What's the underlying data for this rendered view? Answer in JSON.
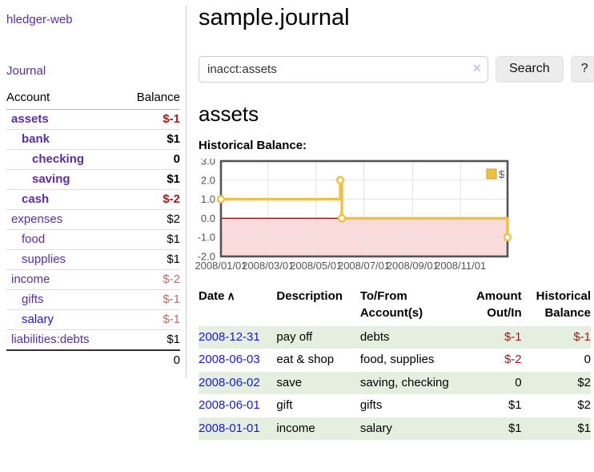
{
  "colors": {
    "link_purple": "#5d2ca8",
    "link_blue": "#1a16e0",
    "negative_strong": "#a11b1b",
    "negative_muted": "#c06c6c",
    "row_green": "#e4efdf",
    "chart_line": "#edc240",
    "chart_negative_region": "#f9dbdb",
    "chart_zero_line": "#8b0000",
    "chart_border": "#545454",
    "chart_grid": "#e3e3e3",
    "chart_text": "#545454"
  },
  "sidebar": {
    "app_title": "hledger-web",
    "journal_link": "Journal",
    "accounts": {
      "header_account": "Account",
      "header_balance": "Balance",
      "rows": [
        {
          "name": "assets",
          "balance": "$-1",
          "level": 1,
          "bold": true,
          "neg": "strong",
          "link_color": "purple"
        },
        {
          "name": "bank",
          "balance": "$1",
          "level": 2,
          "bold": true,
          "neg": "none",
          "link_color": "purple"
        },
        {
          "name": "checking",
          "balance": "0",
          "level": 3,
          "bold": true,
          "neg": "none",
          "link_color": "purple"
        },
        {
          "name": "saving",
          "balance": "$1",
          "level": 3,
          "bold": true,
          "neg": "none",
          "link_color": "purple"
        },
        {
          "name": "cash",
          "balance": "$-2",
          "level": 2,
          "bold": true,
          "neg": "strong",
          "link_color": "purple"
        },
        {
          "name": "expenses",
          "balance": "$2",
          "level": 1,
          "bold": false,
          "neg": "none",
          "link_color": "purple"
        },
        {
          "name": "food",
          "balance": "$1",
          "level": 2,
          "bold": false,
          "neg": "none",
          "link_color": "purple"
        },
        {
          "name": "supplies",
          "balance": "$1",
          "level": 2,
          "bold": false,
          "neg": "none",
          "link_color": "purple"
        },
        {
          "name": "income",
          "balance": "$-2",
          "level": 1,
          "bold": false,
          "neg": "muted",
          "link_color": "purple"
        },
        {
          "name": "gifts",
          "balance": "$-1",
          "level": 2,
          "bold": false,
          "neg": "muted",
          "link_color": "purple"
        },
        {
          "name": "salary",
          "balance": "$-1",
          "level": 2,
          "bold": false,
          "neg": "muted",
          "link_color": "blue"
        },
        {
          "name": "liabilities:debts",
          "balance": "$1",
          "level": 1,
          "bold": false,
          "neg": "none",
          "link_color": "purple"
        }
      ],
      "total": "0"
    }
  },
  "main": {
    "title": "sample.journal",
    "search": {
      "value": "inacct:assets",
      "clear_icon": "×",
      "button_label": "Search",
      "help_label": "?"
    },
    "account_heading": "assets",
    "chart_title": "Historical Balance:"
  },
  "register": {
    "headers": {
      "date": "Date",
      "description": "Description",
      "account": "To/From\nAccount(s)",
      "amount": "Amount\nOut/In",
      "balance": "Historical\nBalance"
    },
    "sort_asc_icon": "∧",
    "rows": [
      {
        "date": "2008-12-31",
        "description": "pay off",
        "account": "debts",
        "amount": "$-1",
        "amount_neg": true,
        "balance": "$-1",
        "balance_neg": true
      },
      {
        "date": "2008-06-03",
        "description": "eat & shop",
        "account": "food, supplies",
        "amount": "$-2",
        "amount_neg": true,
        "balance": "0",
        "balance_neg": false
      },
      {
        "date": "2008-06-02",
        "description": "save",
        "account": "saving, checking",
        "amount": "0",
        "amount_neg": false,
        "balance": "$2",
        "balance_neg": false
      },
      {
        "date": "2008-06-01",
        "description": "gift",
        "account": "gifts",
        "amount": "$1",
        "amount_neg": false,
        "balance": "$2",
        "balance_neg": false
      },
      {
        "date": "2008-01-01",
        "description": "income",
        "account": "salary",
        "amount": "$1",
        "amount_neg": false,
        "balance": "$1",
        "balance_neg": false
      }
    ]
  },
  "chart_data": {
    "type": "line",
    "step": true,
    "title": "Historical Balance",
    "legend": {
      "label": "$",
      "position": "top-right"
    },
    "xlim": [
      0,
      365
    ],
    "ylim": [
      -2,
      3
    ],
    "y_ticks": [
      3.0,
      2.0,
      1.0,
      0.0,
      -1.0,
      -2.0
    ],
    "x_ticks": [
      {
        "label": "2008/01/01",
        "day": 0
      },
      {
        "label": "2008/03/01",
        "day": 60
      },
      {
        "label": "2008/05/01",
        "day": 121
      },
      {
        "label": "2008/07/01",
        "day": 182
      },
      {
        "label": "2008/09/01",
        "day": 244
      },
      {
        "label": "2008/11/01",
        "day": 305
      }
    ],
    "series": [
      {
        "name": "$",
        "color": "#edc240",
        "points": [
          {
            "date": "2008-01-01",
            "day": 0,
            "value": 1,
            "marker": true
          },
          {
            "date": "2008-06-01",
            "day": 152,
            "value": 2,
            "marker": true
          },
          {
            "date": "2008-06-02",
            "day": 153,
            "value": 2,
            "marker": false
          },
          {
            "date": "2008-06-03",
            "day": 154,
            "value": 0,
            "marker": true
          },
          {
            "date": "2008-12-31",
            "day": 365,
            "value": -1,
            "marker": true
          }
        ]
      }
    ],
    "grid": true,
    "negative_region_shaded": true
  }
}
